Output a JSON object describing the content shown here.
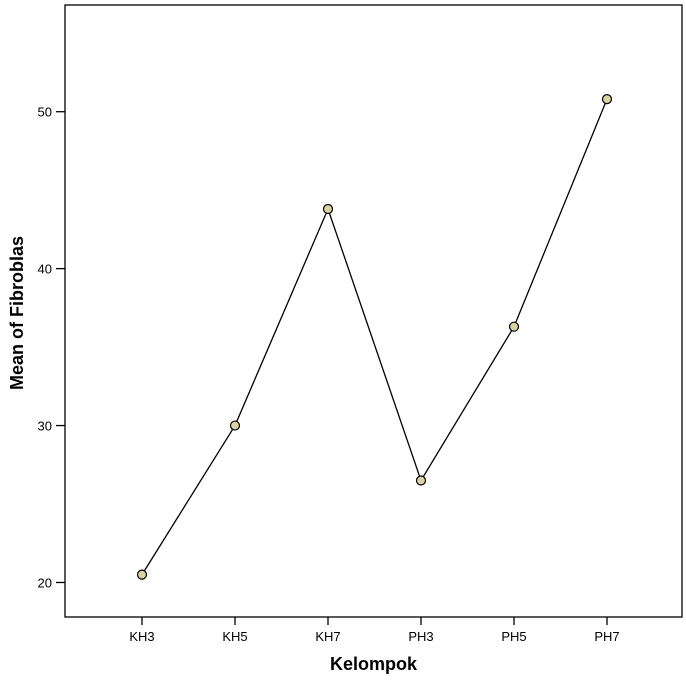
{
  "chart_data": {
    "type": "line",
    "categories": [
      "KH3",
      "KH5",
      "KH7",
      "PH3",
      "PH5",
      "PH7"
    ],
    "series": [
      {
        "values": [
          20.5,
          30.0,
          43.8,
          26.5,
          36.3,
          50.8
        ]
      }
    ],
    "xlabel": "Kelompok",
    "ylabel": "Mean of Fibroblas",
    "ylim": [
      17.8,
      56.8
    ],
    "yticks": [
      20,
      30,
      40,
      50
    ],
    "grid": false,
    "colors": {
      "line": "#000000",
      "marker_fill": "#d8d3a0",
      "marker_stroke": "#000000"
    }
  }
}
